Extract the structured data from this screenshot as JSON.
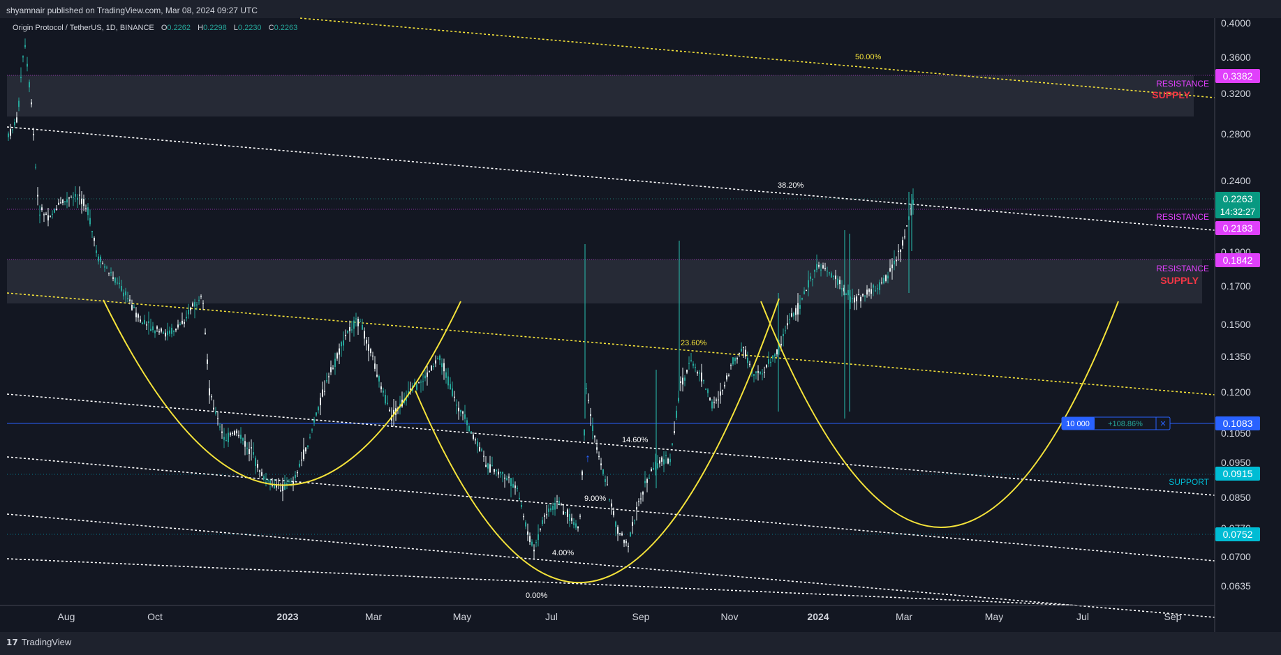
{
  "header": {
    "published": "shyamnair published on TradingView.com, Mar 08, 2024 09:27 UTC"
  },
  "legend": {
    "symbol": "Origin Protocol / TetherUS, 1D, BINANCE",
    "o_label": "O",
    "o": "0.2262",
    "h_label": "H",
    "h": "0.2298",
    "l_label": "L",
    "l": "0.2230",
    "c_label": "C",
    "c": "0.2263"
  },
  "footer": {
    "brand": "TradingView",
    "logo_icon": "tradingview-logo-icon"
  },
  "colors": {
    "bg": "#131722",
    "up": "#26a69a",
    "yellow": "#f5e33a",
    "magenta": "#e040fb",
    "blue": "#2962ff",
    "cyan": "#00bcd4"
  },
  "chart_data": {
    "type": "candlestick",
    "price_axis": [
      "0.4000",
      "0.3600",
      "0.3200",
      "0.2800",
      "0.2400",
      "0.1900",
      "0.1700",
      "0.1500",
      "0.1350",
      "0.1200",
      "0.1050",
      "0.0950",
      "0.0850",
      "0.0770",
      "0.0700",
      "0.0635"
    ],
    "time_axis": [
      {
        "label": "Aug",
        "bold": false
      },
      {
        "label": "Oct",
        "bold": false
      },
      {
        "label": "2023",
        "bold": true
      },
      {
        "label": "Mar",
        "bold": false
      },
      {
        "label": "May",
        "bold": false
      },
      {
        "label": "Jul",
        "bold": false
      },
      {
        "label": "Sep",
        "bold": false
      },
      {
        "label": "Nov",
        "bold": false
      },
      {
        "label": "2024",
        "bold": true
      },
      {
        "label": "Mar",
        "bold": false
      },
      {
        "label": "May",
        "bold": false
      },
      {
        "label": "Jul",
        "bold": false
      },
      {
        "label": "Sep",
        "bold": false
      }
    ],
    "fib_labels": [
      "50.00%",
      "38.20%",
      "23.60%",
      "14.60%",
      "9.00%",
      "4.00%",
      "0.00%"
    ],
    "zone_labels": [
      {
        "top": "RESISTANCE",
        "bottom": "SUPPLY"
      },
      {
        "top": "RESISTANCE",
        "bottom": ""
      },
      {
        "top": "RESISTANCE",
        "bottom": "SUPPLY"
      },
      {
        "top": "SUPPORT",
        "bottom": ""
      }
    ],
    "price_tags": [
      {
        "value": "0.3382",
        "color": "#e040fb"
      },
      {
        "value": "0.2263",
        "sub": "14:32:27",
        "color": "#089981"
      },
      {
        "value": "0.2183",
        "color": "#e040fb"
      },
      {
        "value": "0.1842",
        "color": "#e040fb"
      },
      {
        "value": "0.1083",
        "color": "#2962ff"
      },
      {
        "value": "0.0915",
        "color": "#00bcd4"
      },
      {
        "value": "0.0752",
        "color": "#00bcd4"
      }
    ],
    "position": {
      "qty": "10 000",
      "pnl": "+108.86%",
      "close": "✕"
    },
    "last": {
      "open": 0.2262,
      "high": 0.2298,
      "low": 0.223,
      "close": 0.2263
    }
  }
}
